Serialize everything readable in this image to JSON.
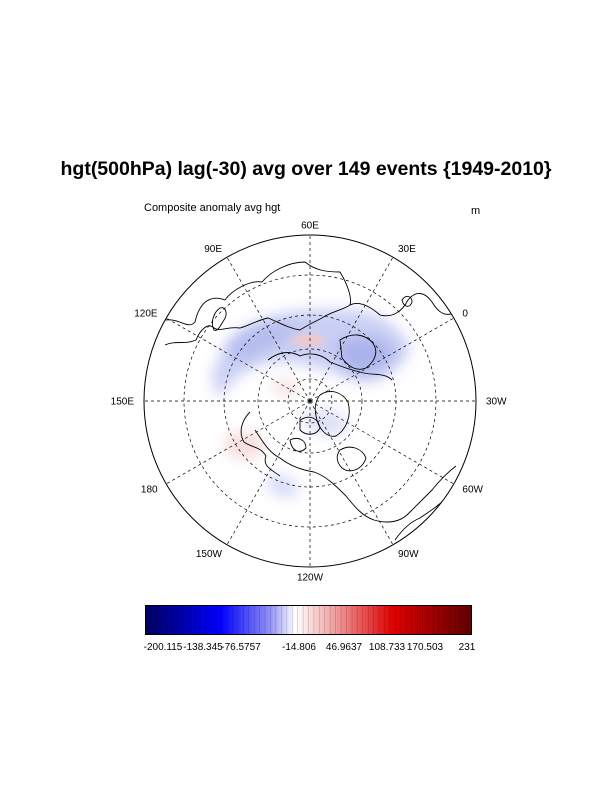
{
  "title": "hgt(500hPa) lag(-30) avg over 149 events {1949-2010}",
  "subtitle_left": "Composite anomaly avg hgt",
  "subtitle_right": "m",
  "longitude_labels": [
    {
      "text": "60E",
      "lon": 60
    },
    {
      "text": "30E",
      "lon": 30
    },
    {
      "text": "0",
      "lon": 0
    },
    {
      "text": "30W",
      "lon": -30
    },
    {
      "text": "60W",
      "lon": -60
    },
    {
      "text": "90W",
      "lon": -90
    },
    {
      "text": "120W",
      "lon": -120
    },
    {
      "text": "150W",
      "lon": -150
    },
    {
      "text": "180",
      "lon": 180
    },
    {
      "text": "150E",
      "lon": 150
    },
    {
      "text": "120E",
      "lon": 120
    },
    {
      "text": "90E",
      "lon": 90
    }
  ],
  "colorbar": {
    "labels": [
      "-200.115",
      "-138.345",
      "-76.5757",
      "-14.806",
      "46.9637",
      "108.733",
      "170.503",
      "231"
    ],
    "min": -200.115,
    "max": 231,
    "colors": {
      "low": "#000060",
      "mid_low": "#0000ff",
      "center": "#ffffff",
      "mid_high": "#e00000",
      "high": "#600000"
    }
  },
  "map_data": {
    "projection": "north-polar-stereographic",
    "latitude_circles": [
      30,
      45,
      60,
      75
    ],
    "longitude_lines_every": 30
  }
}
